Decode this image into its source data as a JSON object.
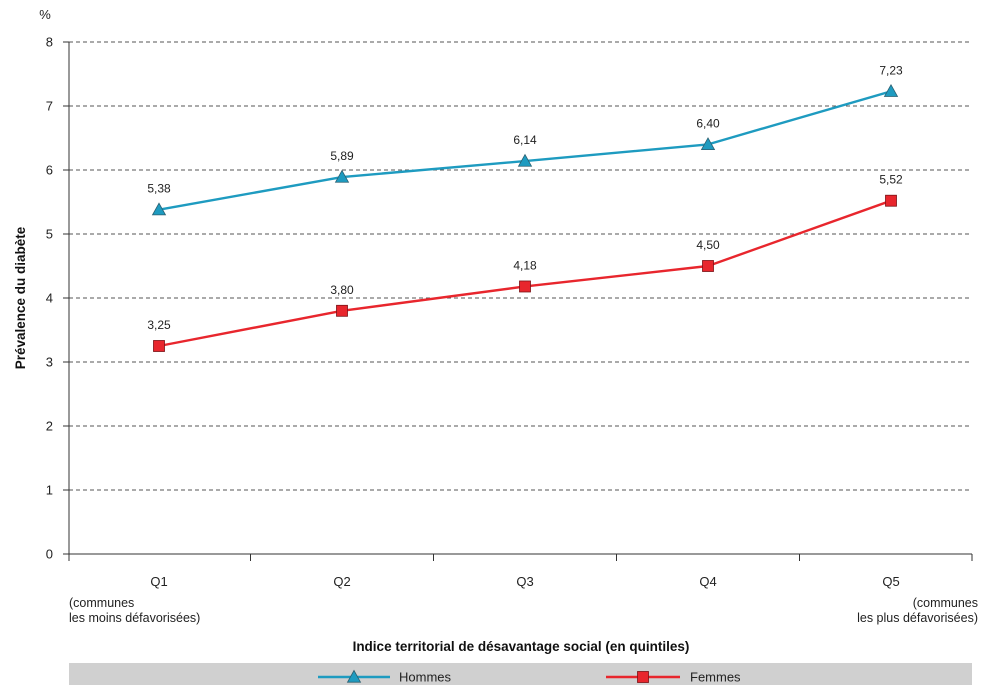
{
  "chart_data": {
    "type": "line",
    "unit_label": "%",
    "ylabel": "Prévalence du diabète",
    "xlabel": "Indice territorial de désavantage social (en quintiles)",
    "ylim": [
      0,
      8
    ],
    "yticks": [
      0,
      1,
      2,
      3,
      4,
      5,
      6,
      7,
      8
    ],
    "grid": "horizontal-dashed",
    "categories": [
      "Q1",
      "Q2",
      "Q3",
      "Q4",
      "Q5"
    ],
    "category_notes": {
      "first": [
        "(communes",
        "les moins défavorisées)"
      ],
      "last": [
        "(communes",
        "les plus défavorisées)"
      ]
    },
    "series": [
      {
        "name": "Hommes",
        "marker": "triangle",
        "color": "#1E9BC0",
        "values": [
          5.38,
          5.89,
          6.14,
          6.4,
          7.23
        ],
        "labels": [
          "5,38",
          "5,89",
          "6,14",
          "6,40",
          "7,23"
        ]
      },
      {
        "name": "Femmes",
        "marker": "square",
        "color": "#E8262D",
        "values": [
          3.25,
          3.8,
          4.18,
          4.5,
          5.52
        ],
        "labels": [
          "3,25",
          "3,80",
          "4,18",
          "4,50",
          "5,52"
        ]
      }
    ],
    "legend": {
      "placement": "bottom",
      "background": "#D0D0D0"
    }
  }
}
